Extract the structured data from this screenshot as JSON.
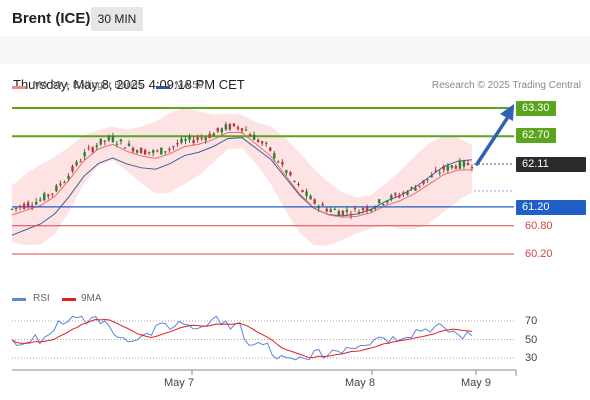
{
  "header": {
    "instrument": "Brent (ICE)",
    "timeframe": "30 MIN",
    "datetime": "Thursday, May 8, 2025 4:09:18 PM CET"
  },
  "legend": {
    "ma20_bb": "MA 20 + Bollinger Bands",
    "ma50": "MA 50",
    "credit": "Research © 2025 Trading Central"
  },
  "colors": {
    "ma20": "#ef6b6b",
    "bb_fill": "#fde0e0",
    "ma50": "#3f5f9e",
    "resistance": "#5aa51e",
    "current": "#2b2b2b",
    "pivot": "#1f5fc6",
    "support": "#d64545",
    "arrow": "#2f62b5",
    "rsi": "#5b86d9",
    "rsi_ma": "#e02020"
  },
  "levels": {
    "r2": "63.30",
    "r1": "62.70",
    "current": "62.11",
    "pivot": "61.20",
    "s1": "60.80",
    "s2": "60.20"
  },
  "rsi_panel": {
    "rsi_label": "RSI",
    "ma_label": "9MA",
    "axis": [
      "70",
      "50",
      "30"
    ]
  },
  "dates": [
    "May 7",
    "May 8",
    "May 9"
  ],
  "chart_data": {
    "type": "candlestick",
    "title": "Brent (ICE)",
    "timeframe": "30 MIN",
    "price_levels": {
      "resistance": [
        63.3,
        62.7
      ],
      "last_price": 62.11,
      "pivot": 61.2,
      "support": [
        60.8,
        60.2
      ]
    },
    "close_path": [
      61.15,
      61.25,
      61.35,
      61.55,
      61.9,
      62.3,
      62.55,
      62.65,
      62.5,
      62.4,
      62.35,
      62.45,
      62.6,
      62.65,
      62.75,
      62.9,
      62.9,
      62.65,
      62.4,
      62.0,
      61.6,
      61.3,
      61.15,
      61.1,
      61.12,
      61.2,
      61.35,
      61.45,
      61.6,
      61.8,
      62.0,
      62.1,
      62.11
    ],
    "rsi": {
      "reference_lines": [
        70,
        50,
        30
      ]
    },
    "x_labels": [
      "May 7",
      "May 8",
      "May 9"
    ]
  }
}
